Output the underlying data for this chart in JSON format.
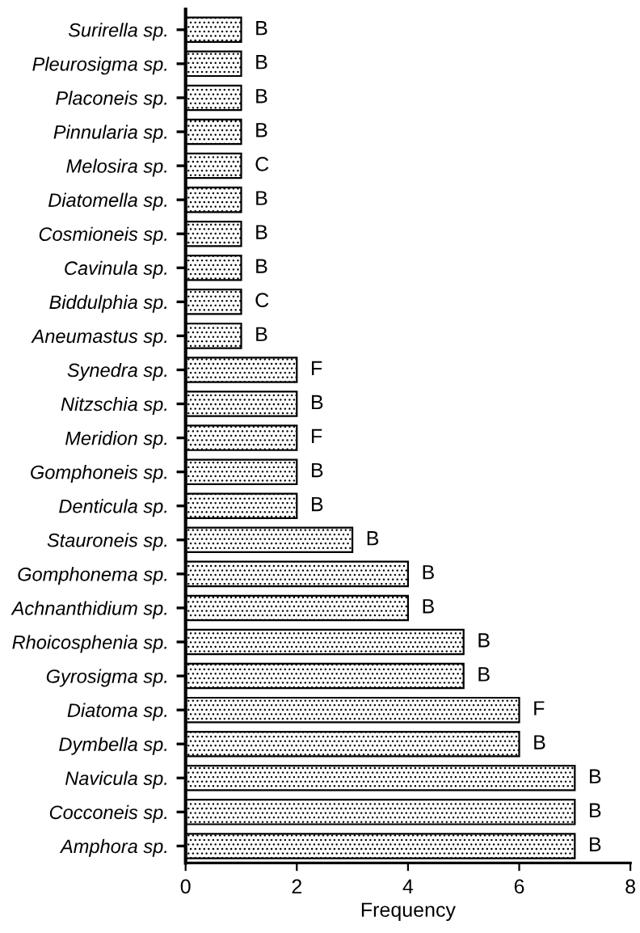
{
  "chart_data": {
    "type": "bar",
    "orientation": "horizontal",
    "xlabel": "Frequency",
    "categories": [
      "Surirella sp.",
      "Pleurosigma sp.",
      "Placoneis sp.",
      "Pinnularia sp.",
      "Melosira sp.",
      "Diatomella sp.",
      "Cosmioneis sp.",
      "Cavinula sp.",
      "Biddulphia sp.",
      "Aneumastus sp.",
      "Synedra sp.",
      "Nitzschia sp.",
      "Meridion sp.",
      "Gomphoneis sp.",
      "Denticula sp.",
      "Stauroneis sp.",
      "Gomphonema sp.",
      "Achnanthidium sp.",
      "Rhoicosphenia sp.",
      "Gyrosigma sp.",
      "Diatoma sp.",
      "Dymbella sp.",
      "Navicula sp.",
      "Cocconeis sp.",
      "Amphora sp."
    ],
    "values": [
      1,
      1,
      1,
      1,
      1,
      1,
      1,
      1,
      1,
      1,
      2,
      2,
      2,
      2,
      2,
      3,
      4,
      4,
      5,
      5,
      6,
      6,
      7,
      7,
      7
    ],
    "value_labels": [
      "B",
      "B",
      "B",
      "B",
      "C",
      "B",
      "B",
      "B",
      "C",
      "B",
      "F",
      "B",
      "F",
      "B",
      "B",
      "B",
      "B",
      "B",
      "B",
      "B",
      "F",
      "B",
      "B",
      "B",
      "B"
    ],
    "color": "#000000",
    "xlim": [
      0,
      8
    ],
    "xticks": [
      0,
      2,
      4,
      6,
      8
    ],
    "grid": false,
    "legend": false
  }
}
